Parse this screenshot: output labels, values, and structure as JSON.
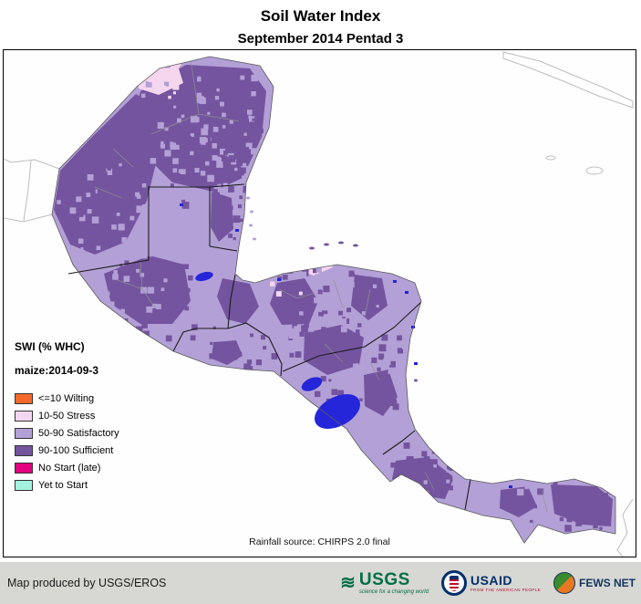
{
  "header": {
    "title": "Soil Water Index",
    "subtitle": "September 2014 Pentad 3"
  },
  "legend": {
    "title_line1": "SWI (% WHC)",
    "title_line2": "maize:2014-09-3",
    "items": [
      {
        "label": "<=10 Wilting",
        "color": "#f4692a"
      },
      {
        "label": "10-50 Stress",
        "color": "#f5d6ef"
      },
      {
        "label": "50-90 Satisfactory",
        "color": "#b3a0d6"
      },
      {
        "label": "90-100 Sufficient",
        "color": "#74549f"
      },
      {
        "label": "No Start (late)",
        "color": "#e3007f"
      },
      {
        "label": "Yet to Start",
        "color": "#a4f2e0"
      }
    ]
  },
  "map": {
    "source_note": "Rainfall source: CHIRPS 2.0 final",
    "colors": {
      "satisfactory": "#b3a0d6",
      "sufficient": "#74549f",
      "stress": "#f5d6ef",
      "wilting": "#f4692a",
      "nostart": "#e3007f",
      "yettostart": "#a4f2e0",
      "lake": "#2526d9",
      "border": "#1c1c1c",
      "admin": "#8d948b",
      "neighbor": "#bdbdbd",
      "coast": "#5a5a5a"
    }
  },
  "footer": {
    "credit": "Map produced by USGS/EROS",
    "usgs": {
      "name": "USGS",
      "tagline": "science for a changing world"
    },
    "usaid": {
      "name": "USAID",
      "tagline": "FROM THE AMERICAN PEOPLE"
    },
    "fewsnet": {
      "name": "FEWS NET"
    }
  }
}
